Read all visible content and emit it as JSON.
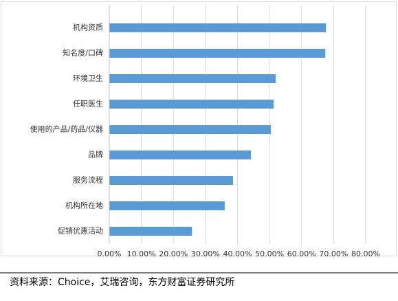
{
  "chart_data": {
    "type": "bar",
    "orientation": "horizontal",
    "categories": [
      "机构资质",
      "知名度/口碑",
      "环境卫生",
      "任职医生",
      "使用的产品/药品/仪器",
      "品牌",
      "服务流程",
      "机构所在地",
      "促销优惠活动"
    ],
    "values": [
      67.6,
      67.4,
      51.9,
      51.3,
      50.4,
      44.2,
      38.6,
      36.0,
      25.8
    ],
    "color": "#5b9bd5",
    "xlim": [
      0,
      80
    ],
    "xticks": [
      {
        "value": 0,
        "label": "0.00%"
      },
      {
        "value": 10,
        "label": "10.00%"
      },
      {
        "value": 20,
        "label": "20.00%"
      },
      {
        "value": 30,
        "label": "30.00%"
      },
      {
        "value": 40,
        "label": "40.00%"
      },
      {
        "value": 50,
        "label": "50.00%"
      },
      {
        "value": 60,
        "label": "60.00%"
      },
      {
        "value": 70,
        "label": "70.00%"
      },
      {
        "value": 80,
        "label": "80.00%"
      }
    ],
    "grid": true
  },
  "source": "资料来源：Choice，艾瑞咨询，东方财富证券研究所"
}
